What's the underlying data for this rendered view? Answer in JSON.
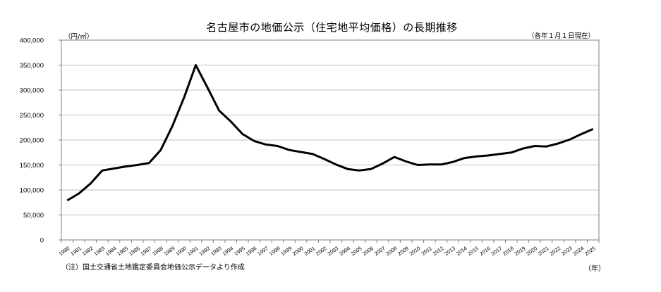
{
  "header": {
    "title": "名古屋市の地価公示（住宅地平均価格）の長期推移",
    "unit_label": "（円/㎡）",
    "as_of_label": "（各年１月１日現在）"
  },
  "footer": {
    "note": "（注）国土交通省土地鑑定委員会地価公示データより作成",
    "x_unit_label": "（年）"
  },
  "style": {
    "line_color": "#000000",
    "grid_color": "#bfbfbf",
    "axis_color": "#808080"
  },
  "chart_data": {
    "type": "line",
    "title": "名古屋市の地価公示（住宅地平均価格）の長期推移",
    "xlabel": "（年）",
    "ylabel": "（円/㎡）",
    "ylim": [
      0,
      400000
    ],
    "yticks": [
      0,
      50000,
      100000,
      150000,
      200000,
      250000,
      300000,
      350000,
      400000
    ],
    "ytick_labels": [
      "0",
      "50,000",
      "100,000",
      "150,000",
      "200,000",
      "250,000",
      "300,000",
      "350,000",
      "400,000"
    ],
    "grid": true,
    "legend": null,
    "annotations": [
      "（各年１月１日現在）",
      "（注）国土交通省土地鑑定委員会地価公示データより作成"
    ],
    "categories": [
      "1980",
      "1981",
      "1982",
      "1983",
      "1984",
      "1985",
      "1986",
      "1987",
      "1988",
      "1989",
      "1990",
      "1991",
      "1992",
      "1993",
      "1994",
      "1995",
      "1996",
      "1997",
      "1998",
      "1999",
      "2000",
      "2001",
      "2002",
      "2003",
      "2004",
      "2005",
      "2006",
      "2007",
      "2008",
      "2009",
      "2010",
      "2011",
      "2012",
      "2013",
      "2014",
      "2015",
      "2016",
      "2017",
      "2018",
      "2019",
      "2020",
      "2021",
      "2022",
      "2023",
      "2024",
      "2025"
    ],
    "series": [
      {
        "name": "住宅地平均価格",
        "values": [
          79000,
          93000,
          113000,
          139000,
          143000,
          147000,
          150000,
          154000,
          180000,
          228000,
          285000,
          350000,
          305000,
          259000,
          237000,
          212000,
          198000,
          191000,
          188000,
          180000,
          176000,
          172000,
          162000,
          151000,
          142000,
          139000,
          142000,
          153000,
          166000,
          157000,
          150000,
          151000,
          151000,
          156000,
          164000,
          167000,
          169000,
          172000,
          175000,
          183000,
          188000,
          187000,
          193000,
          201000,
          212000,
          222000
        ]
      }
    ]
  }
}
